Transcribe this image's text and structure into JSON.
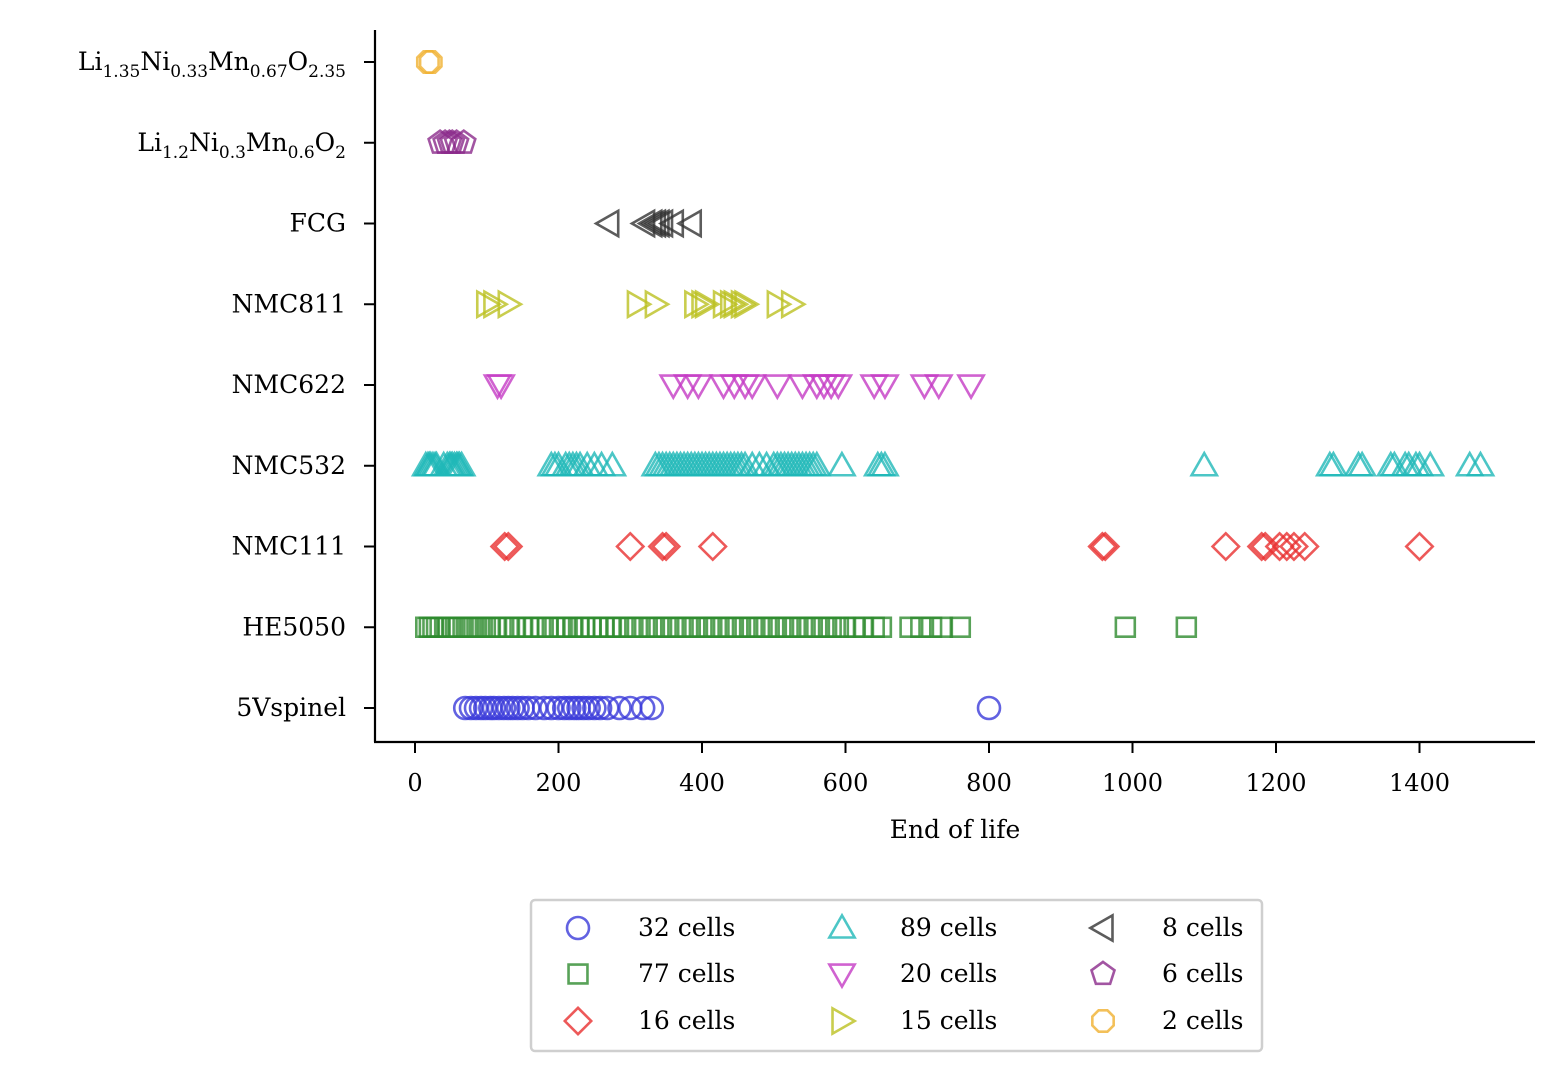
{
  "chart_data": {
    "type": "scatter",
    "title": "",
    "xlabel": "End of life",
    "ylabel": "",
    "xlim": [
      -55,
      1565
    ],
    "xticks": [
      0,
      200,
      400,
      600,
      800,
      1000,
      1200,
      1400
    ],
    "grid": false,
    "legend_position": "below",
    "categories": [
      {
        "id": "5vspinel",
        "label": [
          {
            "t": "5Vspinel"
          }
        ]
      },
      {
        "id": "he5050",
        "label": [
          {
            "t": "HE5050"
          }
        ]
      },
      {
        "id": "nmc111",
        "label": [
          {
            "t": "NMC111"
          }
        ]
      },
      {
        "id": "nmc532",
        "label": [
          {
            "t": "NMC532"
          }
        ]
      },
      {
        "id": "nmc622",
        "label": [
          {
            "t": "NMC622"
          }
        ]
      },
      {
        "id": "nmc811",
        "label": [
          {
            "t": "NMC811"
          }
        ]
      },
      {
        "id": "fcg",
        "label": [
          {
            "t": "FCG"
          }
        ]
      },
      {
        "id": "li12",
        "label": [
          {
            "t": "Li"
          },
          {
            "t": "1.2",
            "sub": true
          },
          {
            "t": "Ni"
          },
          {
            "t": "0.3",
            "sub": true
          },
          {
            "t": "Mn"
          },
          {
            "t": "0.6",
            "sub": true
          },
          {
            "t": "O"
          },
          {
            "t": "2",
            "sub": true
          }
        ]
      },
      {
        "id": "li135",
        "label": [
          {
            "t": "Li"
          },
          {
            "t": "1.35",
            "sub": true
          },
          {
            "t": "Ni"
          },
          {
            "t": "0.33",
            "sub": true
          },
          {
            "t": "Mn"
          },
          {
            "t": "0.67",
            "sub": true
          },
          {
            "t": "O"
          },
          {
            "t": "2.35",
            "sub": true
          }
        ]
      }
    ],
    "series": [
      {
        "name": "32 cells",
        "category": "5vspinel",
        "marker": "circle",
        "color": "#3b3bd9",
        "x": [
          70,
          78,
          85,
          92,
          98,
          105,
          110,
          117,
          124,
          130,
          136,
          143,
          150,
          158,
          168,
          180,
          190,
          200,
          208,
          215,
          222,
          228,
          235,
          242,
          250,
          258,
          268,
          285,
          300,
          318,
          330,
          800
        ]
      },
      {
        "name": "77 cells",
        "category": "he5050",
        "marker": "square",
        "color": "#2e8b2e",
        "x": [
          15,
          20,
          25,
          30,
          35,
          45,
          52,
          60,
          67,
          75,
          82,
          90,
          98,
          105,
          112,
          120,
          130,
          140,
          150,
          158,
          165,
          175,
          185,
          195,
          205,
          212,
          220,
          228,
          236,
          245,
          255,
          263,
          272,
          280,
          290,
          300,
          310,
          320,
          330,
          340,
          350,
          360,
          370,
          380,
          390,
          400,
          410,
          420,
          430,
          440,
          450,
          460,
          470,
          480,
          490,
          500,
          510,
          520,
          530,
          540,
          550,
          560,
          570,
          580,
          590,
          600,
          612,
          625,
          640,
          650,
          690,
          705,
          720,
          735,
          760,
          990,
          1075
        ]
      },
      {
        "name": "16 cells",
        "category": "nmc111",
        "marker": "diamond",
        "color": "#e83030",
        "x": [
          125,
          130,
          300,
          345,
          350,
          415,
          958,
          962,
          1130,
          1180,
          1185,
          1205,
          1215,
          1225,
          1240,
          1400
        ]
      },
      {
        "name": "89 cells",
        "category": "nmc532",
        "marker": "triangle-up",
        "color": "#1fb8b8",
        "x": [
          15,
          18,
          20,
          22,
          25,
          28,
          30,
          40,
          45,
          48,
          50,
          52,
          55,
          58,
          60,
          62,
          65,
          190,
          195,
          200,
          210,
          215,
          220,
          225,
          230,
          240,
          250,
          260,
          275,
          335,
          340,
          345,
          350,
          355,
          360,
          365,
          370,
          375,
          380,
          385,
          390,
          395,
          400,
          405,
          410,
          415,
          420,
          425,
          430,
          435,
          440,
          445,
          450,
          455,
          460,
          470,
          480,
          490,
          500,
          505,
          510,
          515,
          520,
          525,
          530,
          535,
          540,
          545,
          550,
          555,
          560,
          595,
          645,
          650,
          655,
          1100,
          1275,
          1280,
          1315,
          1320,
          1360,
          1365,
          1380,
          1385,
          1395,
          1400,
          1415,
          1470,
          1485
        ]
      },
      {
        "name": "20 cells",
        "category": "nmc622",
        "marker": "triangle-down",
        "color": "#c43bc4",
        "x": [
          115,
          120,
          360,
          380,
          395,
          430,
          445,
          460,
          470,
          505,
          540,
          560,
          570,
          580,
          590,
          640,
          655,
          710,
          730,
          775
        ]
      },
      {
        "name": "15 cells",
        "category": "nmc811",
        "marker": "triangle-right",
        "color": "#bcc020",
        "x": [
          100,
          110,
          130,
          310,
          335,
          390,
          400,
          405,
          430,
          440,
          445,
          455,
          460,
          505,
          525
        ]
      },
      {
        "name": "8 cells",
        "category": "fcg",
        "marker": "triangle-left",
        "color": "#333333",
        "x": [
          270,
          320,
          330,
          335,
          340,
          345,
          360,
          385
        ]
      },
      {
        "name": "6 cells",
        "category": "li12",
        "marker": "pentagon",
        "color": "#8b2a8b",
        "x": [
          35,
          42,
          48,
          52,
          58,
          68
        ]
      },
      {
        "name": "2 cells",
        "category": "li135",
        "marker": "octagon",
        "color": "#f0b030",
        "x": [
          18,
          22
        ]
      }
    ]
  }
}
